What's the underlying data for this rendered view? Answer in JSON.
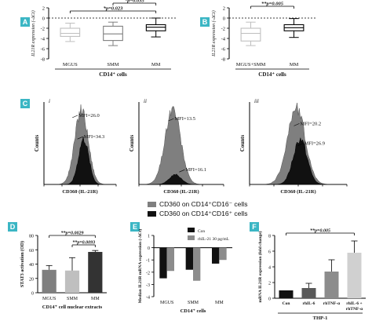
{
  "panels": {
    "A": {
      "letter": "A"
    },
    "B": {
      "letter": "B"
    },
    "C": {
      "letter": "C",
      "sub": [
        "i",
        "ii",
        "iii"
      ]
    },
    "D": {
      "letter": "D"
    },
    "E": {
      "letter": "E"
    },
    "F": {
      "letter": "F"
    }
  },
  "legend_c": [
    {
      "label": "CD360 on CD14⁺CD16⁻ cells",
      "color": "#7f7f7f"
    },
    {
      "label": "CD360 on CD14⁺CD16⁺ cells",
      "color": "#111111"
    }
  ],
  "chart_data": [
    {
      "id": "A",
      "type": "box",
      "ylabel": "IL21R expression (-ΔCt)",
      "xlabel": "CD14⁺ cells",
      "ylim": [
        -8,
        2
      ],
      "yticks": [
        -8,
        -6,
        -4,
        -2,
        0,
        2
      ],
      "categories": [
        "MGUS",
        "SMM",
        "MM"
      ],
      "boxes": [
        {
          "min": -4.6,
          "q1": -3.6,
          "median": -3.0,
          "q3": -2.0,
          "max": -1.0,
          "color": "#bfbfbf"
        },
        {
          "min": -5.4,
          "q1": -4.4,
          "median": -3.1,
          "q3": -1.6,
          "max": -0.8,
          "color": "#7f7f7f"
        },
        {
          "min": -3.7,
          "q1": -2.5,
          "median": -1.8,
          "q3": -1.3,
          "max": 0.0,
          "color": "#000000"
        }
      ],
      "annotations": [
        {
          "text": "*p=0.035",
          "from": 1,
          "to": 2
        },
        {
          "text": "*p=0.023",
          "from": 0,
          "to": 2
        }
      ]
    },
    {
      "id": "B",
      "type": "box",
      "ylabel": "IL21R expression (-ΔCt)",
      "xlabel": "CD14⁺ cells",
      "ylim": [
        -8,
        2
      ],
      "yticks": [
        -8,
        -6,
        -4,
        -2,
        0,
        2
      ],
      "categories": [
        "MGUS+SMM",
        "MM"
      ],
      "boxes": [
        {
          "min": -5.4,
          "q1": -4.5,
          "median": -3.0,
          "q3": -2.0,
          "max": -0.8,
          "color": "#bfbfbf"
        },
        {
          "min": -3.8,
          "q1": -2.5,
          "median": -1.9,
          "q3": -1.3,
          "max": -0.1,
          "color": "#000000"
        }
      ],
      "annotations": [
        {
          "text": "**p=0.005",
          "from": 0,
          "to": 1
        }
      ]
    },
    {
      "id": "C",
      "type": "histogram-overlay",
      "xlabel": "CD360 (IL-21R)",
      "ylabel": "Counts",
      "plots": [
        {
          "sub": "i",
          "mfi": [
            {
              "label": "MFI=26.0"
            },
            {
              "label": "MFI=34.3"
            }
          ]
        },
        {
          "sub": "ii",
          "mfi": [
            {
              "label": "MFI=13.5"
            },
            {
              "label": "MFI=16.1"
            }
          ]
        },
        {
          "sub": "iii",
          "mfi": [
            {
              "label": "MFI=20.2"
            },
            {
              "label": "MFI=26.9"
            }
          ]
        }
      ]
    },
    {
      "id": "D",
      "type": "bar",
      "ylabel": "STAT3 activation (OD)",
      "xlabel": "CD14⁺ cell nuclear extracts",
      "ylim": [
        0,
        80
      ],
      "yticks": [
        0,
        20,
        40,
        60,
        80
      ],
      "categories": [
        "MGUS",
        "SMM",
        "MM"
      ],
      "values": [
        32,
        31,
        57
      ],
      "errors": [
        6,
        18,
        2
      ],
      "colors": [
        "#7f7f7f",
        "#bfbfbf",
        "#333333"
      ],
      "annotations": [
        {
          "text": "**p=0.0029",
          "from": 0,
          "to": 2
        },
        {
          "text": "**p=0.0093",
          "from": 1,
          "to": 2
        }
      ]
    },
    {
      "id": "E",
      "type": "bar",
      "ylabel": "Median IL21R mRNA expression (-ΔCt)",
      "xlabel": "CD14⁺ cells",
      "ylim": [
        -4,
        1
      ],
      "yticks": [
        1,
        0,
        -1,
        -2,
        -3,
        -4
      ],
      "categories": [
        "MGUS",
        "SMM",
        "MM"
      ],
      "series": [
        {
          "name": "Con",
          "values": [
            -2.5,
            -1.8,
            -1.3
          ],
          "color": "#111111"
        },
        {
          "name": "rhIL-21 30 pg/mL",
          "values": [
            -1.9,
            -2.7,
            -1.0
          ],
          "color": "#8c8c8c"
        }
      ]
    },
    {
      "id": "F",
      "type": "bar",
      "ylabel": "mRNA IL21R expression (fold change)",
      "xlabel": "THP-1",
      "ylim": [
        0,
        8
      ],
      "yticks": [
        0,
        2,
        4,
        6,
        8
      ],
      "categories": [
        "Con",
        "rhIL-6",
        "rhTNF-α",
        "rhIL-6 + rhTNF-α"
      ],
      "values": [
        1.0,
        1.3,
        3.4,
        5.8
      ],
      "errors": [
        0,
        0.6,
        1.5,
        1.5
      ],
      "colors": [
        "#111111",
        "#595959",
        "#8c8c8c",
        "#d0d0d0"
      ],
      "annotations": [
        {
          "text": "**p=0.005",
          "from": 0,
          "to": 3
        }
      ]
    }
  ]
}
